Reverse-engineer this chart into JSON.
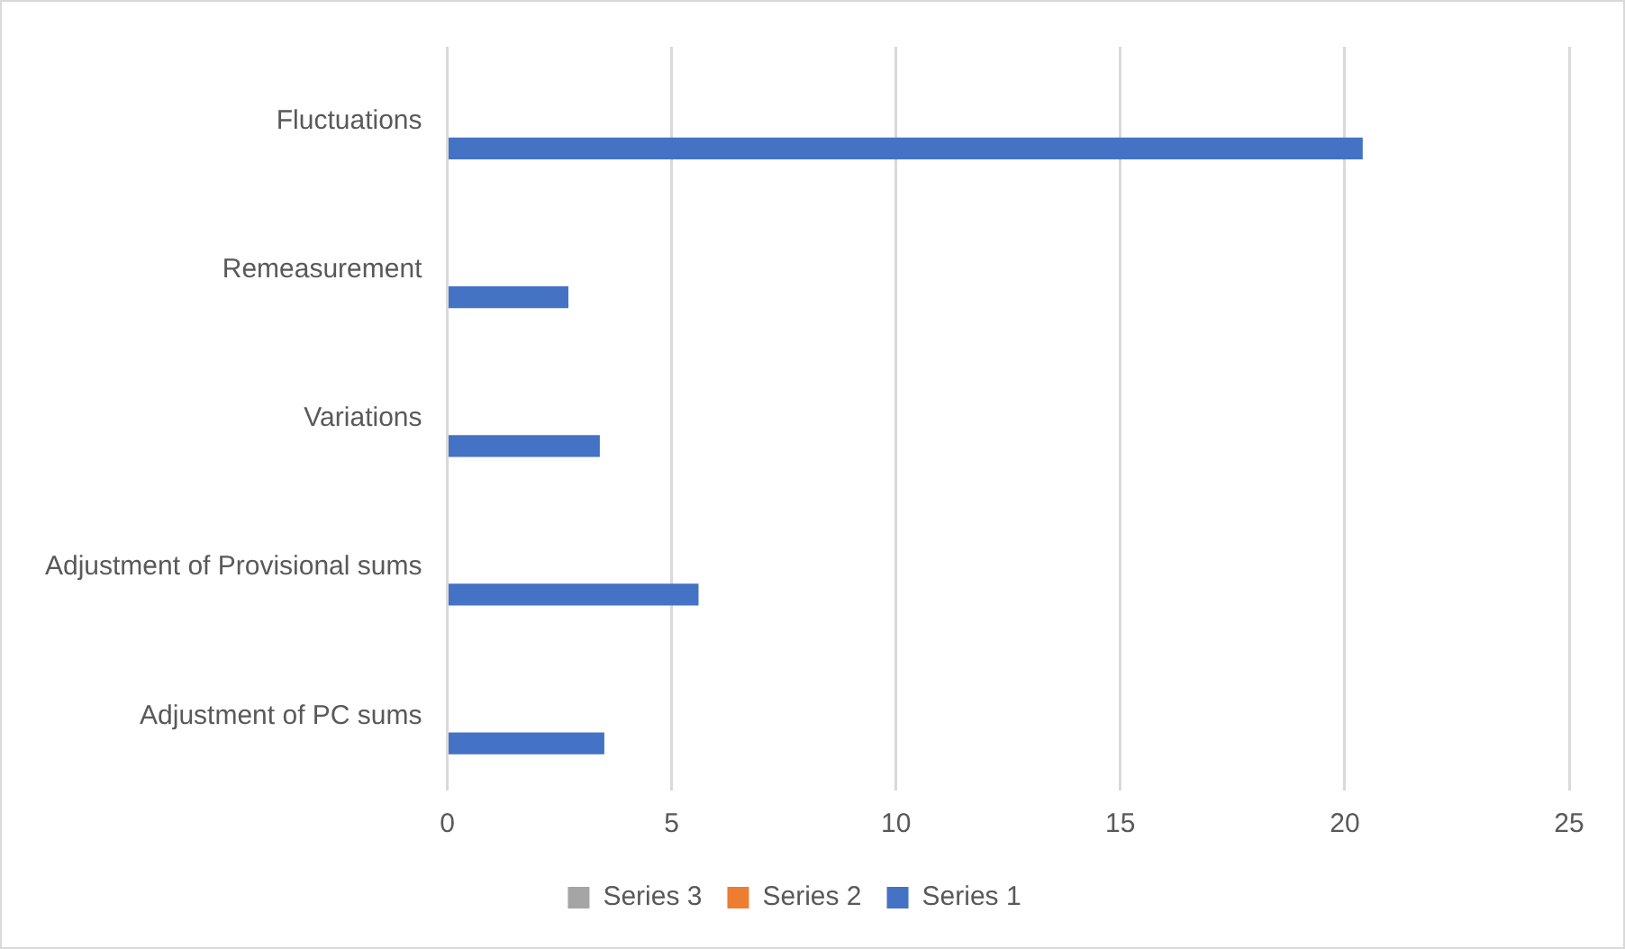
{
  "chart_data": {
    "type": "bar",
    "orientation": "horizontal",
    "categories": [
      "Fluctuations",
      "Remeasurement",
      "Variations",
      "Adjustment of Provisional sums",
      "Adjustment of PC sums"
    ],
    "series": [
      {
        "name": "Series 3",
        "color": "#a5a5a5",
        "values": [
          0,
          0,
          0,
          0,
          0
        ]
      },
      {
        "name": "Series 2",
        "color": "#ed7d31",
        "values": [
          0,
          0,
          0,
          0,
          0
        ]
      },
      {
        "name": "Series 1",
        "color": "#4472c4",
        "values": [
          20.4,
          2.7,
          3.4,
          5.6,
          3.5
        ]
      }
    ],
    "xlim": [
      0,
      25
    ],
    "xticks": [
      0,
      5,
      10,
      15,
      20,
      25
    ],
    "grid": "x",
    "legend": "bottom"
  }
}
